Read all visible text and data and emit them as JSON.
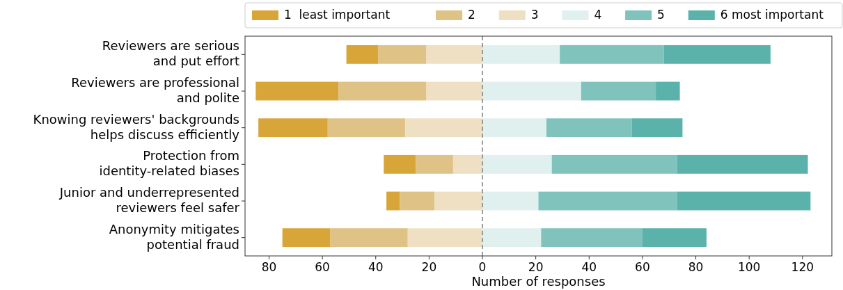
{
  "chart_data": {
    "type": "bar",
    "orientation": "horizontal",
    "xlabel": "Number of responses",
    "categories": [
      "Reviewers are serious\nand put effort",
      "Reviewers are professional\nand polite",
      "Knowing reviewers' backgrounds\nhelps discuss efficiently",
      "Protection from\nidentity-related biases",
      "Junior and underrepresented\nreviewers feel safer",
      "Anonymity mitigates\npotential fraud"
    ],
    "series": [
      {
        "name": "1  least important",
        "color": "#d8a538",
        "values": [
          12,
          31,
          26,
          12,
          5,
          18
        ],
        "base": [
          -51,
          -85,
          -84,
          -37,
          -36,
          -75
        ]
      },
      {
        "name": "2",
        "color": "#dfc285",
        "values": [
          18,
          33,
          29,
          14,
          13,
          29
        ],
        "base": [
          -39,
          -54,
          -58,
          -25,
          -31,
          -57
        ]
      },
      {
        "name": "3",
        "color": "#efe0c3",
        "values": [
          21,
          21,
          29,
          11,
          18,
          28
        ],
        "base": [
          -21,
          -21,
          -29,
          -11,
          -18,
          -28
        ]
      },
      {
        "name": "4",
        "color": "#dff0ee",
        "values": [
          29,
          37,
          24,
          26,
          21,
          22
        ],
        "base": [
          0,
          0,
          0,
          0,
          0,
          0
        ]
      },
      {
        "name": "5",
        "color": "#7fc3bc",
        "values": [
          39,
          28,
          32,
          47,
          52,
          38
        ],
        "base": [
          29,
          37,
          24,
          26,
          21,
          22
        ]
      },
      {
        "name": "6 most important",
        "color": "#5ab2aa",
        "values": [
          40,
          9,
          19,
          49,
          50,
          24
        ],
        "base": [
          68,
          65,
          56,
          73,
          73,
          60
        ]
      }
    ],
    "xlim": [
      -89,
      131
    ],
    "xticks": [
      {
        "value": -80,
        "label": "80"
      },
      {
        "value": -60,
        "label": "60"
      },
      {
        "value": -40,
        "label": "40"
      },
      {
        "value": -20,
        "label": "20"
      },
      0,
      20,
      40,
      60,
      80,
      100,
      120
    ],
    "ref_lines": [
      {
        "axis": "x",
        "value": 0,
        "color": "#808080",
        "line_style": "dashed"
      }
    ],
    "legend": "top",
    "grid": false
  }
}
